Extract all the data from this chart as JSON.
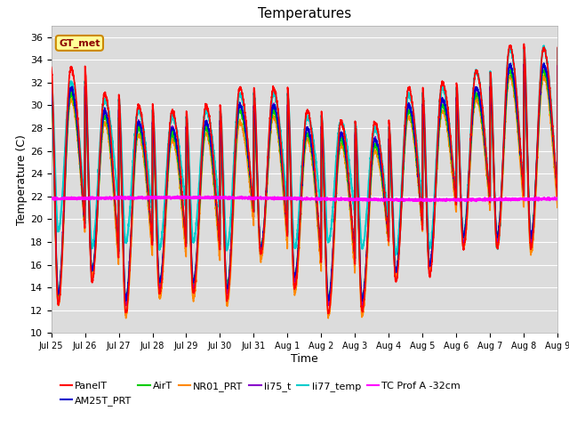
{
  "title": "Temperatures",
  "xlabel": "Time",
  "ylabel": "Temperature (C)",
  "ylim": [
    10,
    37
  ],
  "xlim": [
    0,
    360
  ],
  "background_color": "#dcdcdc",
  "figure_color": "#ffffff",
  "grid_color": "#ffffff",
  "annotation_text": "GT_met",
  "annotation_bg": "#ffff99",
  "annotation_edge": "#cc8800",
  "xtick_labels": [
    "Jul 25",
    "Jul 26",
    "Jul 27",
    "Jul 28",
    "Jul 29",
    "Jul 30",
    "Jul 31",
    "Aug 1",
    "Aug 2",
    "Aug 3",
    "Aug 4",
    "Aug 5",
    "Aug 6",
    "Aug 7",
    "Aug 8",
    "Aug 9"
  ],
  "xtick_positions": [
    0,
    24,
    48,
    72,
    96,
    120,
    144,
    168,
    192,
    216,
    240,
    264,
    288,
    312,
    336,
    360
  ],
  "ytick_positions": [
    10,
    12,
    14,
    16,
    18,
    20,
    22,
    24,
    26,
    28,
    30,
    32,
    34,
    36
  ],
  "series": {
    "PanelT": {
      "color": "#ff0000",
      "lw": 1.2,
      "zorder": 6
    },
    "AM25T_PRT": {
      "color": "#0000cc",
      "lw": 1.2,
      "zorder": 5
    },
    "AirT": {
      "color": "#00cc00",
      "lw": 1.2,
      "zorder": 4
    },
    "NR01_PRT": {
      "color": "#ff8800",
      "lw": 1.2,
      "zorder": 4
    },
    "li75_t": {
      "color": "#8800cc",
      "lw": 1.2,
      "zorder": 4
    },
    "li77_temp": {
      "color": "#00cccc",
      "lw": 1.5,
      "zorder": 3
    },
    "TC Prof A -32cm": {
      "color": "#ff00ff",
      "lw": 1.5,
      "zorder": 7
    }
  }
}
